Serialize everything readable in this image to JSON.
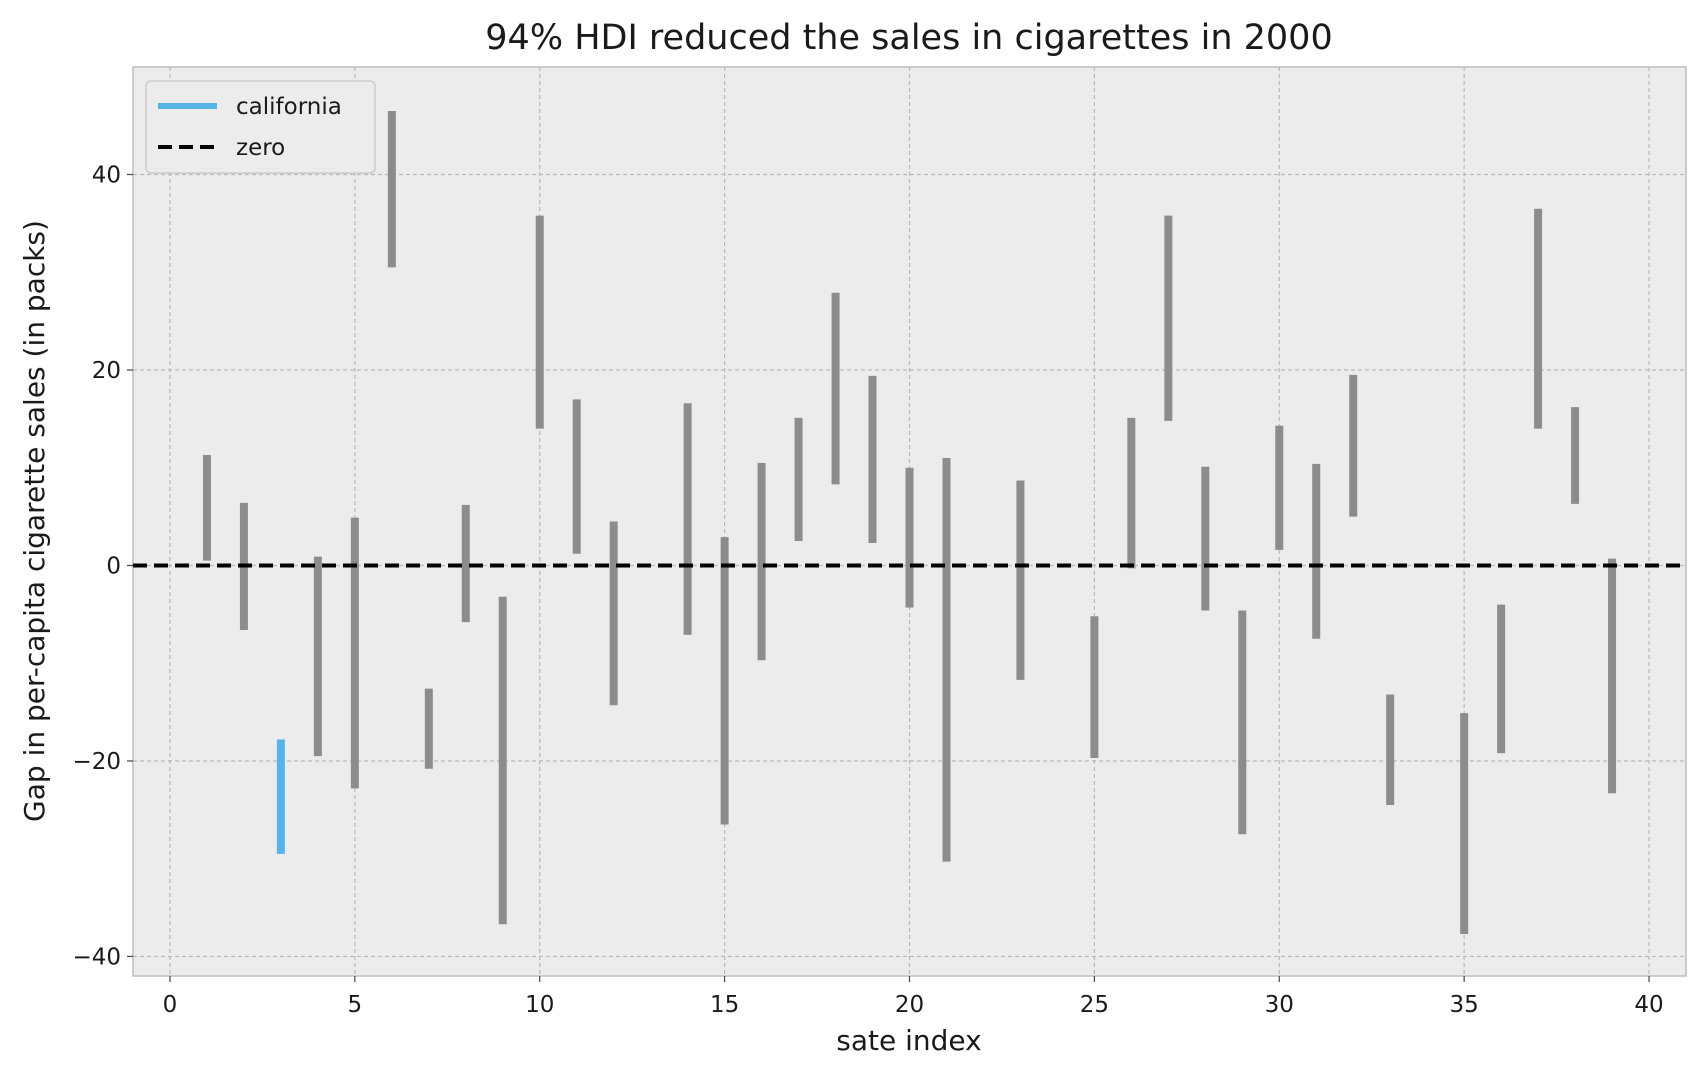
{
  "chart_data": {
    "type": "bar",
    "title": "94% HDI reduced the sales in cigarettes in 2000",
    "xlabel": "sate index",
    "ylabel": "Gap in per-capita cigarette sales (in packs)",
    "xlim": [
      -1,
      41
    ],
    "ylim": [
      -42,
      51
    ],
    "xticks": [
      0,
      5,
      10,
      15,
      20,
      25,
      30,
      35,
      40
    ],
    "yticks": [
      -40,
      -20,
      0,
      20,
      40
    ],
    "ytick_labels": [
      "−40",
      "−20",
      "0",
      "20",
      "40"
    ],
    "grid": true,
    "legend_position": "upper-left",
    "legend": [
      {
        "label": "california",
        "style": "solid",
        "color": "#56b4e9"
      },
      {
        "label": "zero",
        "style": "dashed",
        "color": "#000000"
      }
    ],
    "zero_line": 0,
    "colors": {
      "treated": "#56b4e9",
      "control": "#8c8c8c",
      "zero": "#000000",
      "background": "#ececec",
      "grid": "#b8b8b8"
    },
    "series": [
      {
        "name": "california",
        "x": [
          3
        ],
        "lower": [
          -29.5
        ],
        "upper": [
          -17.8
        ]
      },
      {
        "x": [
          1,
          2,
          4,
          5,
          6,
          7,
          8,
          9,
          10,
          11,
          12,
          14,
          15,
          16,
          17,
          18,
          19,
          20,
          21,
          23,
          25,
          26,
          27,
          28,
          29,
          30,
          31,
          32,
          33,
          35,
          36,
          37,
          38,
          39
        ],
        "lower": [
          0.5,
          -6.6,
          -19.5,
          -22.8,
          30.5,
          -20.8,
          -5.8,
          -36.7,
          14.0,
          1.2,
          -14.3,
          -7.1,
          -26.5,
          -9.7,
          2.5,
          8.3,
          2.3,
          -4.3,
          -30.3,
          -11.7,
          -19.7,
          -0.3,
          14.8,
          -4.6,
          -27.5,
          1.6,
          -7.5,
          5.0,
          -24.5,
          -37.7,
          -19.2,
          14.0,
          6.3,
          -23.3
        ],
        "upper": [
          11.3,
          6.4,
          0.9,
          4.9,
          46.5,
          -12.6,
          6.2,
          -3.2,
          35.8,
          17.0,
          4.5,
          16.6,
          2.9,
          10.5,
          15.1,
          27.9,
          19.4,
          10.0,
          11.0,
          8.7,
          -5.2,
          15.1,
          35.8,
          10.1,
          -4.6,
          14.3,
          10.4,
          19.5,
          -13.2,
          -15.1,
          -4.0,
          36.5,
          16.2,
          0.7
        ]
      }
    ]
  }
}
